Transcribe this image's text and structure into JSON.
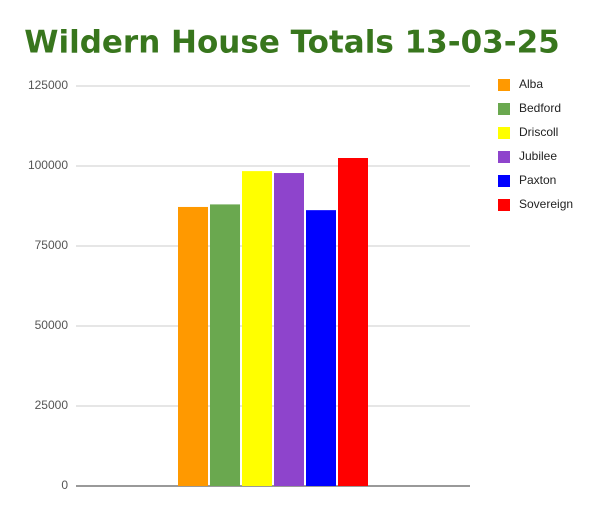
{
  "chart_data": {
    "type": "bar",
    "title": "Wildern House Totals 13-03-25",
    "categories": [
      null
    ],
    "series": [
      {
        "name": "Alba",
        "color": "#ff9900",
        "values": [
          87200
        ]
      },
      {
        "name": "Bedford",
        "color": "#6aa84f",
        "values": [
          88000
        ]
      },
      {
        "name": "Driscoll",
        "color": "#ffff00",
        "values": [
          98400
        ]
      },
      {
        "name": "Jubilee",
        "color": "#8e44cc",
        "values": [
          97800
        ]
      },
      {
        "name": "Paxton",
        "color": "#0000ff",
        "values": [
          86200
        ]
      },
      {
        "name": "Sovereign",
        "color": "#ff0000",
        "values": [
          102500
        ]
      }
    ],
    "ylim": [
      0,
      125000
    ],
    "yticks": [
      0,
      25000,
      50000,
      75000,
      100000,
      125000
    ],
    "grid": true,
    "legend": "right"
  }
}
